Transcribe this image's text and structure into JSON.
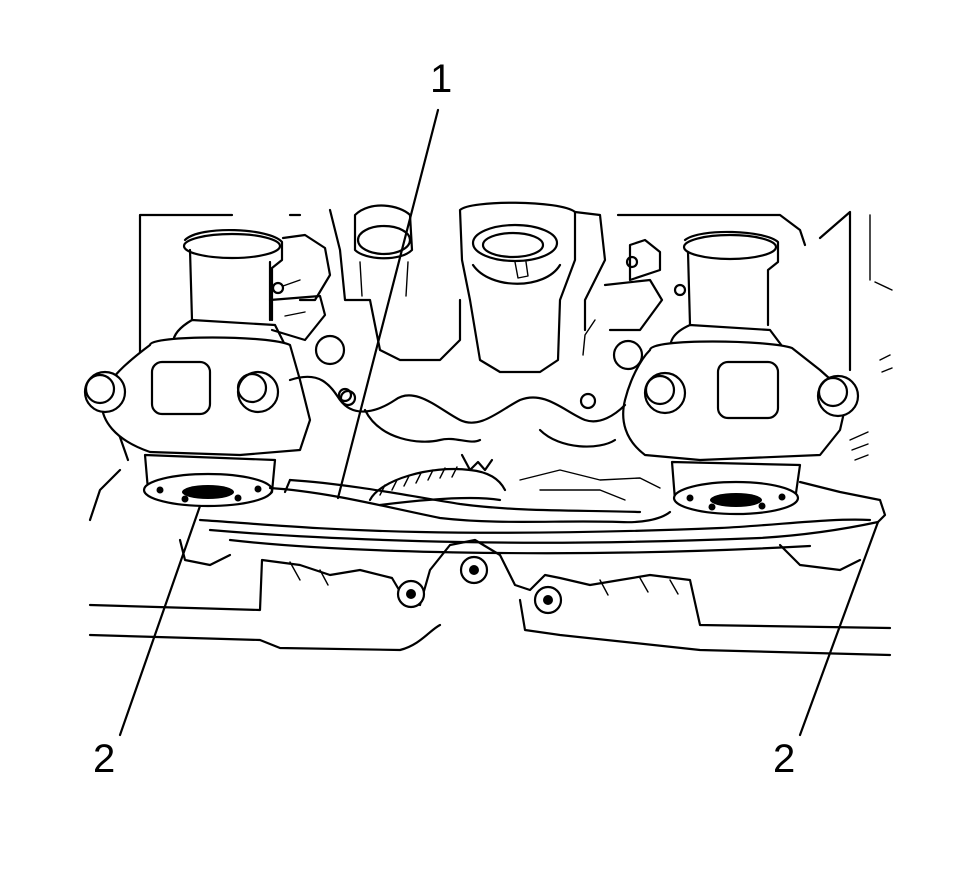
{
  "callouts": {
    "c1": "1",
    "c2_left": "2",
    "c2_right": "2"
  }
}
